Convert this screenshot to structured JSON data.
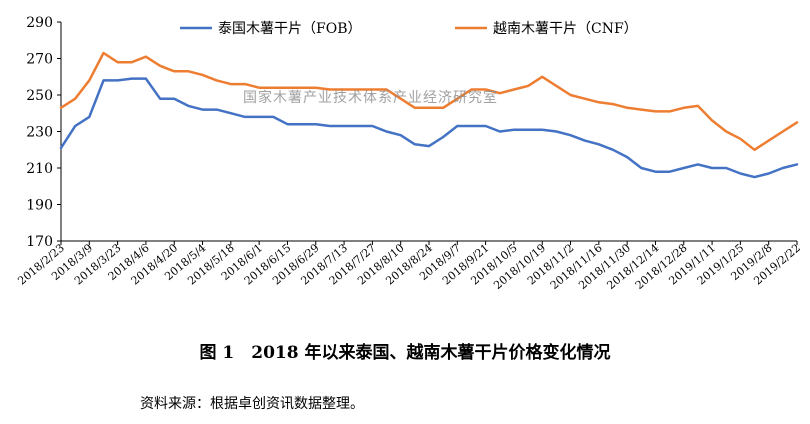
{
  "chart_data": {
    "type": "line",
    "title": "",
    "xlabel": "",
    "ylabel": "",
    "ylim": [
      170,
      290
    ],
    "yticks": [
      170,
      190,
      210,
      230,
      250,
      270,
      290
    ],
    "grid": false,
    "legend_position": "top",
    "x_tick_labels": [
      "2018/2/23",
      "2018/3/9",
      "2018/3/23",
      "2018/4/6",
      "2018/4/20",
      "2018/5/4",
      "2018/5/18",
      "2018/6/1",
      "2018/6/15",
      "2018/6/29",
      "2018/7/13",
      "2018/7/27",
      "2018/8/10",
      "2018/8/24",
      "2018/9/7",
      "2018/9/21",
      "2018/10/5",
      "2018/10/19",
      "2018/11/2",
      "2018/11/16",
      "2018/11/30",
      "2018/12/14",
      "2018/12/28",
      "2019/1/11",
      "2019/1/25",
      "2019/2/8",
      "2019/2/22"
    ],
    "x": [
      "2018/2/23",
      "2018/3/2",
      "2018/3/9",
      "2018/3/16",
      "2018/3/23",
      "2018/3/30",
      "2018/4/6",
      "2018/4/13",
      "2018/4/20",
      "2018/4/27",
      "2018/5/4",
      "2018/5/11",
      "2018/5/18",
      "2018/5/25",
      "2018/6/1",
      "2018/6/8",
      "2018/6/15",
      "2018/6/22",
      "2018/6/29",
      "2018/7/6",
      "2018/7/13",
      "2018/7/20",
      "2018/7/27",
      "2018/8/3",
      "2018/8/10",
      "2018/8/17",
      "2018/8/24",
      "2018/8/31",
      "2018/9/7",
      "2018/9/14",
      "2018/9/21",
      "2018/9/28",
      "2018/10/5",
      "2018/10/12",
      "2018/10/19",
      "2018/10/26",
      "2018/11/2",
      "2018/11/9",
      "2018/11/16",
      "2018/11/23",
      "2018/11/30",
      "2018/12/7",
      "2018/12/14",
      "2018/12/21",
      "2018/12/28",
      "2019/1/4",
      "2019/1/11",
      "2019/1/18",
      "2019/1/25",
      "2019/2/1",
      "2019/2/8",
      "2019/2/15",
      "2019/2/22"
    ],
    "series": [
      {
        "name": "泰国木薯干片（FOB）",
        "color": "#4472C4",
        "values": [
          221,
          233,
          238,
          258,
          258,
          259,
          259,
          248,
          248,
          244,
          242,
          242,
          240,
          238,
          238,
          238,
          234,
          234,
          234,
          233,
          233,
          233,
          233,
          230,
          228,
          223,
          222,
          227,
          233,
          233,
          233,
          230,
          231,
          231,
          231,
          230,
          228,
          225,
          223,
          220,
          216,
          210,
          208,
          208,
          210,
          212,
          210,
          210,
          207,
          205,
          207,
          210,
          212
        ]
      },
      {
        "name": "越南木薯干片（CNF）",
        "color": "#ED7D31",
        "values": [
          243,
          248,
          258,
          273,
          268,
          268,
          271,
          266,
          263,
          263,
          261,
          258,
          256,
          256,
          254,
          254,
          254,
          254,
          254,
          253,
          253,
          253,
          253,
          253,
          248,
          243,
          243,
          243,
          248,
          253,
          253,
          251,
          253,
          255,
          260,
          255,
          250,
          248,
          246,
          245,
          243,
          242,
          241,
          241,
          243,
          244,
          236,
          230,
          226,
          220,
          225,
          230,
          235
        ]
      }
    ],
    "annotation": "国家木薯产业技术体系产业经济研究室"
  },
  "caption": "图 1　2018 年以来泰国、越南木薯干片价格变化情况",
  "source": "资料来源：根据卓创资讯数据整理。"
}
